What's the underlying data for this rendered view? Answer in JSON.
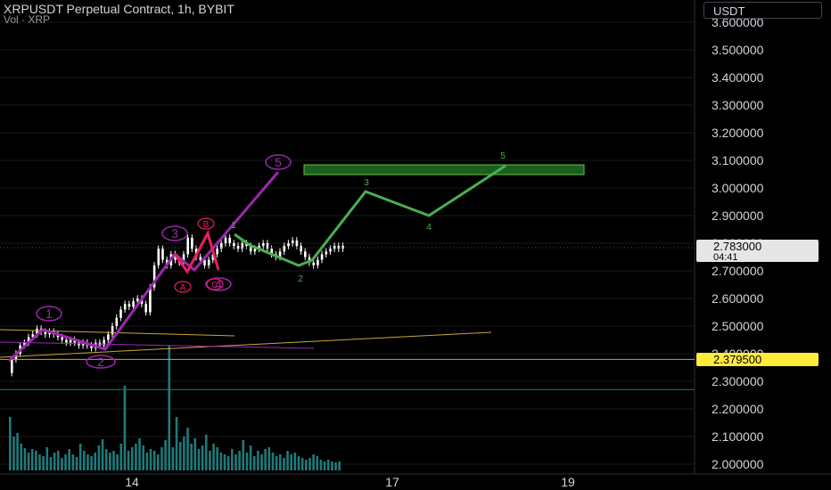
{
  "header": {
    "title": "XRPUSDT Perpetual Contract, 1h, BYBIT",
    "volume_label": "Vol · XRP"
  },
  "currency_button": "USDT",
  "colors": {
    "background": "#000000",
    "grid": "#1a1a1a",
    "text": "#d1d4dc",
    "candle": "#ffffff",
    "purple_wave": "#9c27b0",
    "red_wave": "#e91e63",
    "green_path": "#4caf50",
    "target_box": "#1b5e20",
    "support_line": "#c8a73a",
    "teal_line": "#1b8080",
    "volume": "#1f7a7a",
    "price_label_bg": "#e6e6e6",
    "support_label_bg": "#ffeb3b"
  },
  "chart_data": {
    "type": "candlestick",
    "y_axis": {
      "min": 1.98,
      "max": 3.66,
      "ticks": [
        "3.600000",
        "3.500000",
        "3.400000",
        "3.300000",
        "3.200000",
        "3.100000",
        "3.000000",
        "2.900000",
        "2.800000",
        "2.700000",
        "2.600000",
        "2.500000",
        "2.400000",
        "2.300000",
        "2.200000",
        "2.100000",
        "2.000000"
      ]
    },
    "x_axis": {
      "labels": [
        "14",
        "17",
        "19"
      ]
    },
    "current_price": {
      "value": "2.783000",
      "countdown": "04:41"
    },
    "support_price": "2.379500",
    "wave_labels_purple": [
      "1",
      "2",
      "3",
      "4",
      "5"
    ],
    "wave_labels_red": [
      "A",
      "B",
      "C"
    ],
    "green_path_labels": [
      "1",
      "2",
      "3",
      "4",
      "5"
    ]
  }
}
